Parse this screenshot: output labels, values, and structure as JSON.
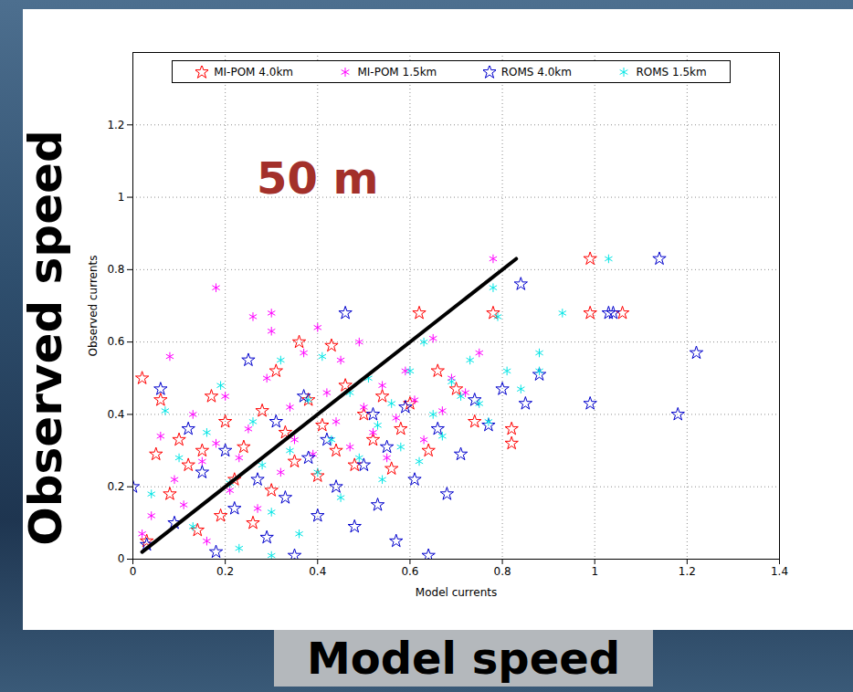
{
  "chart_data": {
    "type": "scatter",
    "xlabel": "Model currents",
    "ylabel": "Observed currents",
    "x_title": "Model speed",
    "y_title": "Observed speed",
    "annotations": [
      {
        "text": "50 m",
        "x": 0.4,
        "y": 1.05,
        "color": "#a3302a"
      }
    ],
    "xlim": [
      0,
      1.4
    ],
    "ylim": [
      0,
      1.4
    ],
    "xticks": [
      0,
      0.2,
      0.4,
      0.6,
      0.8,
      1,
      1.2,
      1.4
    ],
    "yticks": [
      0,
      0.2,
      0.4,
      0.6,
      0.8,
      1,
      1.2
    ],
    "grid": true,
    "legend": "top",
    "reference_line": {
      "x": [
        0.02,
        0.83
      ],
      "y": [
        0.02,
        0.83
      ],
      "color": "#000000"
    },
    "series": [
      {
        "name": "MI-POM 4.0km",
        "color": "#ff0000",
        "marker": "star",
        "x": [
          0.02,
          0.03,
          0.05,
          0.06,
          0.08,
          0.1,
          0.12,
          0.14,
          0.15,
          0.17,
          0.19,
          0.2,
          0.22,
          0.24,
          0.26,
          0.28,
          0.3,
          0.31,
          0.33,
          0.35,
          0.36,
          0.38,
          0.4,
          0.41,
          0.43,
          0.44,
          0.46,
          0.48,
          0.5,
          0.52,
          0.54,
          0.56,
          0.58,
          0.6,
          0.62,
          0.64,
          0.66,
          0.7,
          0.74,
          0.78,
          0.82,
          0.82,
          0.99,
          0.99,
          1.06
        ],
        "values": [
          0.5,
          0.05,
          0.29,
          0.44,
          0.18,
          0.33,
          0.26,
          0.08,
          0.3,
          0.45,
          0.12,
          0.38,
          0.22,
          0.31,
          0.1,
          0.41,
          0.19,
          0.52,
          0.35,
          0.27,
          0.6,
          0.44,
          0.23,
          0.37,
          0.59,
          0.3,
          0.48,
          0.26,
          0.4,
          0.33,
          0.45,
          0.25,
          0.36,
          0.43,
          0.68,
          0.3,
          0.52,
          0.47,
          0.38,
          0.68,
          0.36,
          0.32,
          0.83,
          0.68,
          0.68
        ]
      },
      {
        "name": "MI-POM 1.5km",
        "color": "#ff00ff",
        "marker": "asterisk",
        "x": [
          0.02,
          0.04,
          0.06,
          0.08,
          0.09,
          0.11,
          0.13,
          0.15,
          0.16,
          0.18,
          0.2,
          0.21,
          0.23,
          0.25,
          0.26,
          0.27,
          0.29,
          0.3,
          0.32,
          0.34,
          0.35,
          0.37,
          0.39,
          0.4,
          0.42,
          0.44,
          0.45,
          0.47,
          0.49,
          0.5,
          0.52,
          0.54,
          0.55,
          0.57,
          0.59,
          0.61,
          0.63,
          0.65,
          0.67,
          0.69,
          0.72,
          0.75,
          0.78,
          0.18,
          0.3
        ],
        "values": [
          0.07,
          0.12,
          0.34,
          0.56,
          0.22,
          0.15,
          0.4,
          0.27,
          0.05,
          0.32,
          0.45,
          0.19,
          0.28,
          0.36,
          0.67,
          0.14,
          0.5,
          0.63,
          0.24,
          0.42,
          0.33,
          0.57,
          0.29,
          0.64,
          0.46,
          0.38,
          0.55,
          0.31,
          0.6,
          0.42,
          0.35,
          0.48,
          0.28,
          0.39,
          0.52,
          0.44,
          0.33,
          0.61,
          0.41,
          0.5,
          0.46,
          0.57,
          0.83,
          0.75,
          0.68
        ]
      },
      {
        "name": "ROMS 4.0km",
        "color": "#0000cc",
        "marker": "star",
        "x": [
          0.0,
          0.03,
          0.06,
          0.09,
          0.12,
          0.15,
          0.18,
          0.2,
          0.22,
          0.25,
          0.27,
          0.29,
          0.31,
          0.33,
          0.35,
          0.37,
          0.38,
          0.4,
          0.42,
          0.44,
          0.46,
          0.48,
          0.5,
          0.52,
          0.53,
          0.55,
          0.57,
          0.59,
          0.61,
          0.64,
          0.66,
          0.68,
          0.71,
          0.74,
          0.77,
          0.8,
          0.84,
          0.85,
          0.88,
          0.99,
          1.03,
          1.04,
          1.14,
          1.18,
          1.22
        ],
        "values": [
          0.2,
          0.04,
          0.47,
          0.1,
          0.36,
          0.24,
          0.02,
          0.3,
          0.14,
          0.55,
          0.22,
          0.06,
          0.38,
          0.17,
          0.01,
          0.45,
          0.28,
          0.12,
          0.33,
          0.2,
          0.68,
          0.09,
          0.26,
          0.4,
          0.15,
          0.31,
          0.05,
          0.42,
          0.22,
          0.01,
          0.36,
          0.18,
          0.29,
          0.44,
          0.37,
          0.47,
          0.76,
          0.43,
          0.51,
          0.43,
          0.68,
          0.68,
          0.83,
          0.4,
          0.57
        ]
      },
      {
        "name": "ROMS 1.5km",
        "color": "#00e5e5",
        "marker": "asterisk",
        "x": [
          0.04,
          0.07,
          0.1,
          0.13,
          0.16,
          0.19,
          0.21,
          0.23,
          0.26,
          0.28,
          0.3,
          0.32,
          0.34,
          0.36,
          0.38,
          0.4,
          0.41,
          0.43,
          0.45,
          0.47,
          0.49,
          0.51,
          0.53,
          0.54,
          0.56,
          0.58,
          0.6,
          0.62,
          0.63,
          0.65,
          0.67,
          0.69,
          0.71,
          0.73,
          0.75,
          0.77,
          0.79,
          0.81,
          0.84,
          0.88,
          0.88,
          0.93,
          0.78,
          1.03,
          0.3
        ],
        "values": [
          0.18,
          0.41,
          0.28,
          0.09,
          0.35,
          0.48,
          0.21,
          0.03,
          0.38,
          0.26,
          0.13,
          0.55,
          0.3,
          0.07,
          0.44,
          0.24,
          0.56,
          0.33,
          0.17,
          0.46,
          0.28,
          0.5,
          0.37,
          0.22,
          0.43,
          0.31,
          0.52,
          0.27,
          0.6,
          0.4,
          0.34,
          0.49,
          0.45,
          0.55,
          0.43,
          0.38,
          0.67,
          0.52,
          0.47,
          0.57,
          0.52,
          0.68,
          0.75,
          0.83,
          0.01
        ]
      }
    ]
  }
}
